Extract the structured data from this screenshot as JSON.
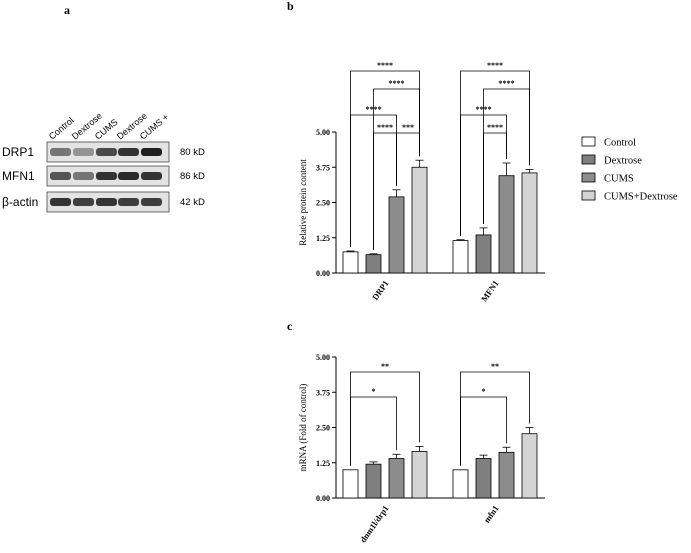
{
  "panels": {
    "a": "a",
    "b": "b",
    "c": "c"
  },
  "western_blot": {
    "lane_labels": [
      "Control",
      "Dextrose",
      "CUMS",
      "Dextrose",
      "CUMS +"
    ],
    "rows": [
      {
        "protein": "DRP1",
        "size": "80 kD",
        "intensities": [
          0.55,
          0.4,
          0.75,
          0.85,
          0.95
        ]
      },
      {
        "protein": "MFN1",
        "size": "86 kD",
        "intensities": [
          0.7,
          0.55,
          0.85,
          0.9,
          0.85
        ]
      },
      {
        "protein": "β-actin",
        "size": "42 kD",
        "intensities": [
          0.85,
          0.8,
          0.85,
          0.8,
          0.8
        ]
      }
    ]
  },
  "legend": {
    "entries": [
      {
        "label": "Control",
        "color": "#ffffff"
      },
      {
        "label": "Dextrose",
        "color": "#7f7f7f"
      },
      {
        "label": "CUMS",
        "color": "#8c8c8c"
      },
      {
        "label": "CUMS+Dextrose",
        "color": "#d4d4d4"
      }
    ]
  },
  "chart_data": [
    {
      "type": "bar",
      "panel": "b",
      "categories": [
        "DRP1",
        "MFN1"
      ],
      "series": [
        {
          "name": "Control",
          "values": [
            0.75,
            1.15
          ],
          "errors": [
            0.03,
            0.03
          ],
          "color": "#ffffff"
        },
        {
          "name": "Dextrose",
          "values": [
            0.65,
            1.35
          ],
          "errors": [
            0.03,
            0.25
          ],
          "color": "#7f7f7f"
        },
        {
          "name": "CUMS",
          "values": [
            2.7,
            3.45
          ],
          "errors": [
            0.25,
            0.45
          ],
          "color": "#8c8c8c"
        },
        {
          "name": "CUMS+Dextrose",
          "values": [
            3.75,
            3.55
          ],
          "errors": [
            0.25,
            0.12
          ],
          "color": "#d4d4d4"
        }
      ],
      "ylabel": "Relative protein content",
      "ylim": [
        0,
        5
      ],
      "yticks": [
        "0.00",
        "1.25",
        "2.50",
        "3.75",
        "5.00"
      ],
      "significance": [
        {
          "category": 0,
          "from": 0,
          "to": 3,
          "label": "****"
        },
        {
          "category": 0,
          "from": 1,
          "to": 3,
          "label": "****"
        },
        {
          "category": 0,
          "from": 0,
          "to": 2,
          "label": "****"
        },
        {
          "category": 0,
          "from": 1,
          "to": 2,
          "label": "****"
        },
        {
          "category": 0,
          "from": 2,
          "to": 3,
          "label": "***"
        },
        {
          "category": 1,
          "from": 0,
          "to": 3,
          "label": "****"
        },
        {
          "category": 1,
          "from": 1,
          "to": 3,
          "label": "****"
        },
        {
          "category": 1,
          "from": 0,
          "to": 2,
          "label": "****"
        },
        {
          "category": 1,
          "from": 1,
          "to": 2,
          "label": "****"
        }
      ]
    },
    {
      "type": "bar",
      "panel": "c",
      "categories": [
        "dnm1l/drp1",
        "mfn1"
      ],
      "series": [
        {
          "name": "Control",
          "values": [
            1.0,
            1.0
          ],
          "errors": [
            0.0,
            0.0
          ],
          "color": "#ffffff"
        },
        {
          "name": "Dextrose",
          "values": [
            1.2,
            1.4
          ],
          "errors": [
            0.08,
            0.12
          ],
          "color": "#7f7f7f"
        },
        {
          "name": "CUMS",
          "values": [
            1.4,
            1.62
          ],
          "errors": [
            0.15,
            0.18
          ],
          "color": "#8c8c8c"
        },
        {
          "name": "CUMS+Dextrose",
          "values": [
            1.65,
            2.28
          ],
          "errors": [
            0.18,
            0.22
          ],
          "color": "#d4d4d4"
        }
      ],
      "ylabel": "mRNA (Fold of control)",
      "ylim": [
        0,
        5
      ],
      "yticks": [
        "0.00",
        "1.25",
        "2.50",
        "3.75",
        "5.00"
      ],
      "significance": [
        {
          "category": 0,
          "from": 0,
          "to": 3,
          "label": "**"
        },
        {
          "category": 0,
          "from": 0,
          "to": 2,
          "label": "*"
        },
        {
          "category": 1,
          "from": 0,
          "to": 3,
          "label": "**"
        },
        {
          "category": 1,
          "from": 0,
          "to": 2,
          "label": "*"
        }
      ]
    }
  ]
}
